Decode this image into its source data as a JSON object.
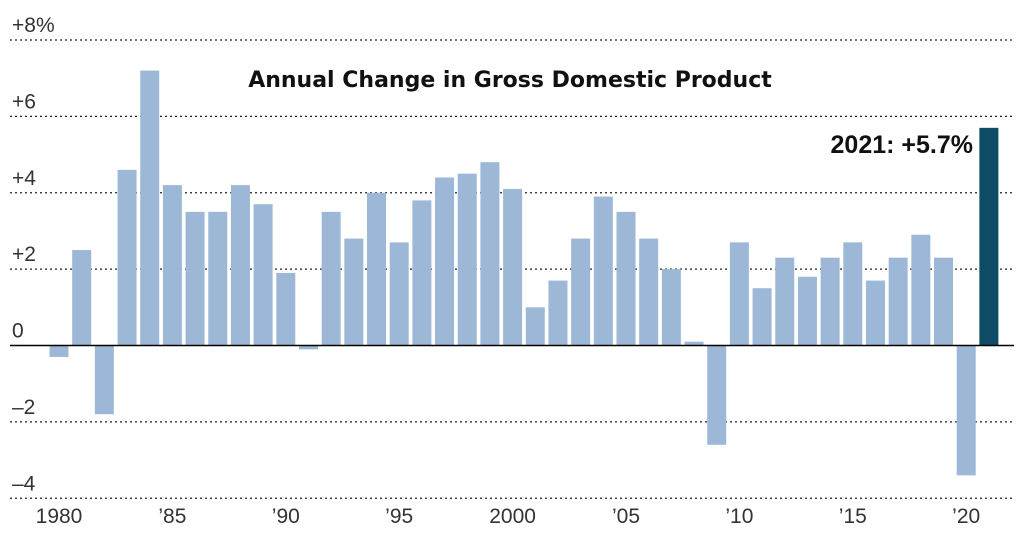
{
  "chart_data": {
    "type": "bar",
    "title": "Annual Change in Gross Domestic Product",
    "xlabel": "",
    "ylabel": "",
    "ylim": [
      -4,
      8
    ],
    "grid": true,
    "legend": "none",
    "y_ticks": [
      {
        "value": 8,
        "label": "+8%"
      },
      {
        "value": 6,
        "label": "+6"
      },
      {
        "value": 4,
        "label": "+4"
      },
      {
        "value": 2,
        "label": "+2"
      },
      {
        "value": 0,
        "label": "0"
      },
      {
        "value": -2,
        "label": "–2"
      },
      {
        "value": -4,
        "label": "–4"
      }
    ],
    "x_ticks": [
      {
        "year": 1980,
        "label": "1980"
      },
      {
        "year": 1985,
        "label": "’85"
      },
      {
        "year": 1990,
        "label": "’90"
      },
      {
        "year": 1995,
        "label": "’95"
      },
      {
        "year": 2000,
        "label": "2000"
      },
      {
        "year": 2005,
        "label": "’05"
      },
      {
        "year": 2010,
        "label": "’10"
      },
      {
        "year": 2015,
        "label": "’15"
      },
      {
        "year": 2020,
        "label": "’20"
      }
    ],
    "years": [
      1980,
      1981,
      1982,
      1983,
      1984,
      1985,
      1986,
      1987,
      1988,
      1989,
      1990,
      1991,
      1992,
      1993,
      1994,
      1995,
      1996,
      1997,
      1998,
      1999,
      2000,
      2001,
      2002,
      2003,
      2004,
      2005,
      2006,
      2007,
      2008,
      2009,
      2010,
      2011,
      2012,
      2013,
      2014,
      2015,
      2016,
      2017,
      2018,
      2019,
      2020,
      2021
    ],
    "values": [
      -0.3,
      2.5,
      -1.8,
      4.6,
      7.2,
      4.2,
      3.5,
      3.5,
      4.2,
      3.7,
      1.9,
      -0.1,
      3.5,
      2.8,
      4.0,
      2.7,
      3.8,
      4.4,
      4.5,
      4.8,
      4.1,
      1.0,
      1.7,
      2.8,
      3.9,
      3.5,
      2.8,
      2.0,
      0.1,
      -2.6,
      2.7,
      1.5,
      2.3,
      1.8,
      2.3,
      2.7,
      1.7,
      2.3,
      2.9,
      2.3,
      -3.4,
      5.7
    ],
    "highlight": {
      "year": 2021,
      "label": "2021: +5.7%"
    },
    "colors": {
      "bar": "#9db8d6",
      "highlight": "#0d4c64"
    }
  }
}
